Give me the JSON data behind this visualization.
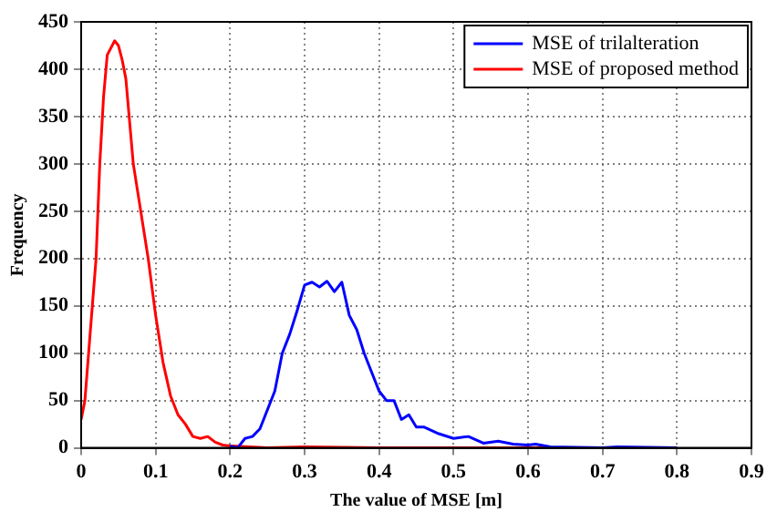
{
  "chart_data": {
    "type": "line",
    "xlabel": "The value of MSE [m]",
    "ylabel": "Frequency",
    "xlim": [
      0,
      0.9
    ],
    "xticks": [
      0,
      0.1,
      0.2,
      0.3,
      0.4,
      0.5,
      0.6,
      0.7,
      0.8,
      0.9
    ],
    "ylim": [
      0,
      450
    ],
    "yticks": [
      0,
      50,
      100,
      150,
      200,
      250,
      300,
      350,
      400,
      450
    ],
    "grid": true,
    "legend": "top right",
    "marker": "none",
    "line_style": "solid",
    "series": [
      {
        "name": "MSE of trilalteration",
        "color": "#0000ff",
        "x": [
          0.2,
          0.21,
          0.22,
          0.23,
          0.24,
          0.25,
          0.26,
          0.27,
          0.28,
          0.29,
          0.3,
          0.31,
          0.32,
          0.33,
          0.34,
          0.35,
          0.36,
          0.37,
          0.38,
          0.39,
          0.4,
          0.41,
          0.42,
          0.43,
          0.44,
          0.45,
          0.46,
          0.48,
          0.5,
          0.52,
          0.54,
          0.56,
          0.58,
          0.6,
          0.61,
          0.63,
          0.7,
          0.72,
          0.8
        ],
        "values": [
          2,
          0,
          10,
          12,
          20,
          40,
          60,
          100,
          120,
          145,
          172,
          175,
          170,
          176,
          165,
          175,
          140,
          125,
          100,
          80,
          60,
          50,
          50,
          30,
          35,
          22,
          22,
          15,
          10,
          12,
          5,
          7,
          4,
          3,
          4,
          1,
          0,
          1,
          0
        ]
      },
      {
        "name": "MSE of proposed method",
        "color": "#ff0000",
        "x": [
          0,
          0.005,
          0.01,
          0.02,
          0.025,
          0.03,
          0.035,
          0.045,
          0.05,
          0.055,
          0.06,
          0.07,
          0.08,
          0.09,
          0.1,
          0.11,
          0.12,
          0.13,
          0.14,
          0.15,
          0.16,
          0.17,
          0.18,
          0.19,
          0.2,
          0.25,
          0.3,
          0.4,
          0.6,
          0.8
        ],
        "values": [
          30,
          50,
          100,
          200,
          300,
          370,
          415,
          430,
          425,
          410,
          390,
          300,
          250,
          200,
          140,
          90,
          55,
          35,
          25,
          12,
          10,
          12,
          6,
          3,
          2,
          0,
          1,
          0,
          0,
          0
        ]
      }
    ]
  }
}
